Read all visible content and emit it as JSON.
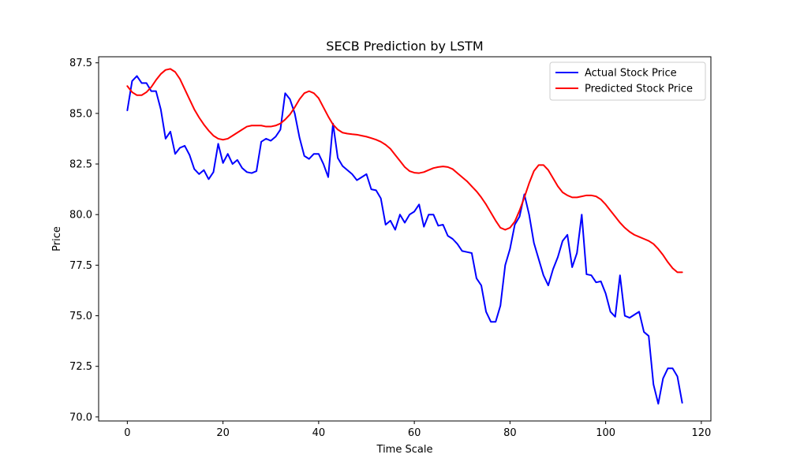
{
  "chart_data": {
    "type": "line",
    "title": "SECB Prediction by LSTM",
    "xlabel": "Time Scale",
    "ylabel": "Price",
    "xlim": [
      -6,
      122
    ],
    "ylim": [
      69.8,
      87.8
    ],
    "xticks": [
      0,
      20,
      40,
      60,
      80,
      100,
      120
    ],
    "yticks": [
      70.0,
      72.5,
      75.0,
      77.5,
      80.0,
      82.5,
      85.0,
      87.5
    ],
    "xtick_labels": [
      "0",
      "20",
      "40",
      "60",
      "80",
      "100",
      "120"
    ],
    "ytick_labels": [
      "70.0",
      "72.5",
      "75.0",
      "77.5",
      "80.0",
      "82.5",
      "85.0",
      "87.5"
    ],
    "grid": false,
    "legend_position": "upper right",
    "series": [
      {
        "name": "Actual Stock Price",
        "color": "#0000ff",
        "x": [
          0,
          1,
          2,
          3,
          4,
          5,
          6,
          7,
          8,
          9,
          10,
          11,
          12,
          13,
          14,
          15,
          16,
          17,
          18,
          19,
          20,
          21,
          22,
          23,
          24,
          25,
          26,
          27,
          28,
          29,
          30,
          31,
          32,
          33,
          34,
          35,
          36,
          37,
          38,
          39,
          40,
          41,
          42,
          43,
          44,
          45,
          46,
          47,
          48,
          49,
          50,
          51,
          52,
          53,
          54,
          55,
          56,
          57,
          58,
          59,
          60,
          61,
          62,
          63,
          64,
          65,
          66,
          67,
          68,
          69,
          70,
          71,
          72,
          73,
          74,
          75,
          76,
          77,
          78,
          79,
          80,
          81,
          82,
          83,
          84,
          85,
          86,
          87,
          88,
          89,
          90,
          91,
          92,
          93,
          94,
          95,
          96,
          97,
          98,
          99,
          100,
          101,
          102,
          103,
          104,
          105,
          106,
          107,
          108,
          109,
          110,
          111,
          112,
          113,
          114,
          115,
          116
        ],
        "values": [
          85.15,
          86.6,
          86.85,
          86.5,
          86.5,
          86.1,
          86.1,
          85.2,
          83.75,
          84.1,
          83.0,
          83.3,
          83.4,
          82.95,
          82.25,
          82.0,
          82.2,
          81.75,
          82.1,
          83.5,
          82.55,
          83.0,
          82.5,
          82.7,
          82.3,
          82.1,
          82.05,
          82.15,
          83.6,
          83.75,
          83.65,
          83.85,
          84.2,
          86.0,
          85.7,
          85.0,
          83.8,
          82.9,
          82.75,
          83.0,
          83.0,
          82.5,
          81.85,
          84.5,
          82.8,
          82.4,
          82.2,
          82.0,
          81.7,
          81.85,
          82.0,
          81.25,
          81.2,
          80.8,
          79.5,
          79.7,
          79.25,
          80.0,
          79.6,
          80.0,
          80.15,
          80.5,
          79.4,
          80.0,
          80.0,
          79.45,
          79.5,
          78.95,
          78.8,
          78.55,
          78.2,
          78.15,
          78.1,
          76.85,
          76.5,
          75.2,
          74.7,
          74.7,
          75.5,
          77.5,
          78.3,
          79.5,
          79.9,
          81.0,
          80.0,
          78.6,
          77.8,
          77.0,
          76.5,
          77.3,
          77.9,
          78.7,
          79.0,
          77.4,
          78.1,
          80.0,
          77.05,
          77.0,
          76.65,
          76.7,
          76.1,
          75.2,
          74.95,
          77.0,
          75.0,
          74.9,
          75.05,
          75.2,
          74.2,
          74.0,
          71.6,
          70.65,
          71.9,
          72.4,
          72.4,
          72.0,
          70.7
        ]
      },
      {
        "name": "Predicted Stock Price",
        "color": "#ff0000",
        "x": [
          0,
          1,
          2,
          3,
          4,
          5,
          6,
          7,
          8,
          9,
          10,
          11,
          12,
          13,
          14,
          15,
          16,
          17,
          18,
          19,
          20,
          21,
          22,
          23,
          24,
          25,
          26,
          27,
          28,
          29,
          30,
          31,
          32,
          33,
          34,
          35,
          36,
          37,
          38,
          39,
          40,
          41,
          42,
          43,
          44,
          45,
          46,
          47,
          48,
          49,
          50,
          51,
          52,
          53,
          54,
          55,
          56,
          57,
          58,
          59,
          60,
          61,
          62,
          63,
          64,
          65,
          66,
          67,
          68,
          69,
          70,
          71,
          72,
          73,
          74,
          75,
          76,
          77,
          78,
          79,
          80,
          81,
          82,
          83,
          84,
          85,
          86,
          87,
          88,
          89,
          90,
          91,
          92,
          93,
          94,
          95,
          96,
          97,
          98,
          99,
          100,
          101,
          102,
          103,
          104,
          105,
          106,
          107,
          108,
          109,
          110,
          111,
          112,
          113,
          114,
          115,
          116
        ],
        "values": [
          86.35,
          86.05,
          85.9,
          85.9,
          86.05,
          86.3,
          86.65,
          86.95,
          87.15,
          87.2,
          87.05,
          86.7,
          86.2,
          85.7,
          85.2,
          84.8,
          84.45,
          84.15,
          83.9,
          83.75,
          83.7,
          83.75,
          83.9,
          84.05,
          84.2,
          84.35,
          84.4,
          84.4,
          84.4,
          84.35,
          84.35,
          84.4,
          84.5,
          84.7,
          84.95,
          85.3,
          85.7,
          86.0,
          86.1,
          86.0,
          85.75,
          85.3,
          84.85,
          84.45,
          84.2,
          84.05,
          84.0,
          83.97,
          83.95,
          83.9,
          83.85,
          83.78,
          83.7,
          83.6,
          83.45,
          83.25,
          82.95,
          82.65,
          82.35,
          82.15,
          82.07,
          82.05,
          82.1,
          82.2,
          82.3,
          82.35,
          82.38,
          82.35,
          82.25,
          82.05,
          81.85,
          81.65,
          81.4,
          81.15,
          80.85,
          80.5,
          80.1,
          79.7,
          79.35,
          79.25,
          79.35,
          79.65,
          80.2,
          80.85,
          81.55,
          82.15,
          82.45,
          82.45,
          82.2,
          81.8,
          81.4,
          81.1,
          80.95,
          80.85,
          80.85,
          80.9,
          80.95,
          80.95,
          80.9,
          80.75,
          80.5,
          80.2,
          79.9,
          79.6,
          79.35,
          79.15,
          79.0,
          78.9,
          78.8,
          78.7,
          78.55,
          78.3,
          78.0,
          77.65,
          77.35,
          77.15,
          77.15
        ]
      }
    ]
  }
}
